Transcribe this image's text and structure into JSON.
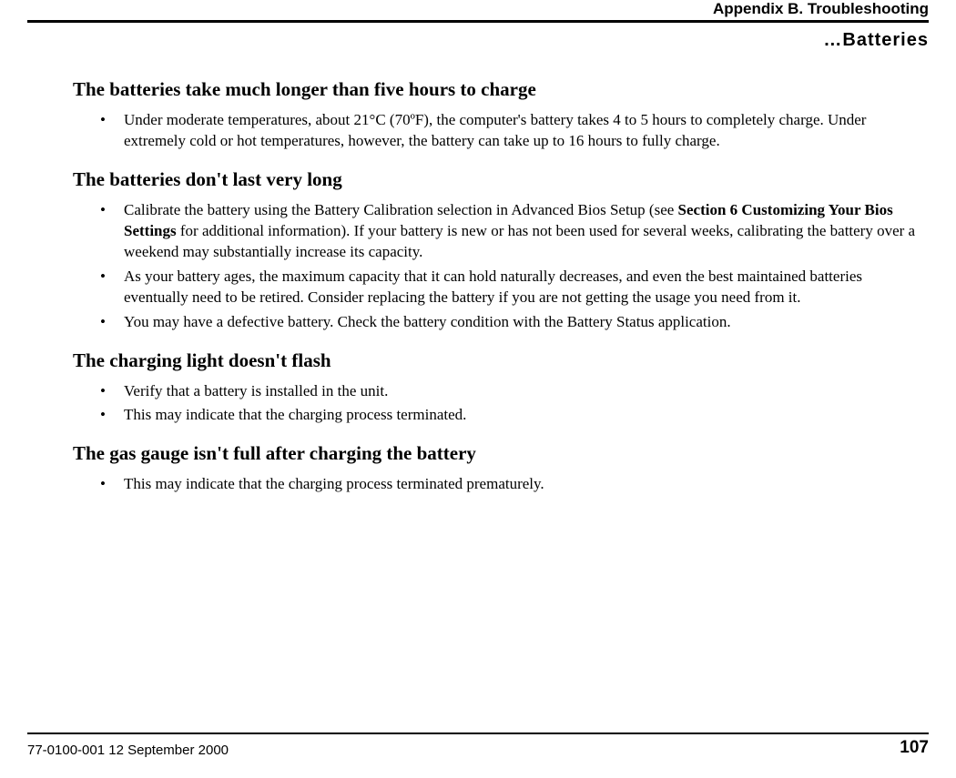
{
  "header": {
    "appendix": "Appendix B. Troubleshooting",
    "section_continue": "…Batteries"
  },
  "sections": {
    "s1": {
      "title": "The batteries take much longer than five hours to charge",
      "b1": "Under moderate temperatures, about 21°C (70ºF), the computer's battery takes 4 to 5 hours to completely charge.  Under extremely cold or hot temperatures, however, the battery can take up to 16 hours to fully charge."
    },
    "s2": {
      "title": "The batteries don't last very long",
      "b1_pre": "Calibrate the battery using the Battery Calibration selection in Advanced Bios Setup (see ",
      "b1_bold": "Section 6  Customizing Your Bios Settings",
      "b1_post": " for additional information). If your battery is new or has not been used for several weeks, calibrating  the battery over a weekend may substantially increase its capacity.",
      "b2": "As your battery ages, the maximum capacity that it can hold naturally decreases, and even the best maintained batteries eventually need to be retired. Consider replacing the battery if you are not getting the usage you need from it.",
      "b3": "You may have a defective battery. Check the battery condition with the Battery Status application."
    },
    "s3": {
      "title": "The charging light doesn't flash",
      "b1": "Verify that a battery is installed in the unit.",
      "b2": "This may indicate that the charging process terminated."
    },
    "s4": {
      "title": "The gas gauge isn't full after charging the battery",
      "b1": "This may indicate that the charging process terminated prematurely."
    }
  },
  "footer": {
    "doc_date": "77-0100-001   12 September 2000",
    "page": "107"
  }
}
